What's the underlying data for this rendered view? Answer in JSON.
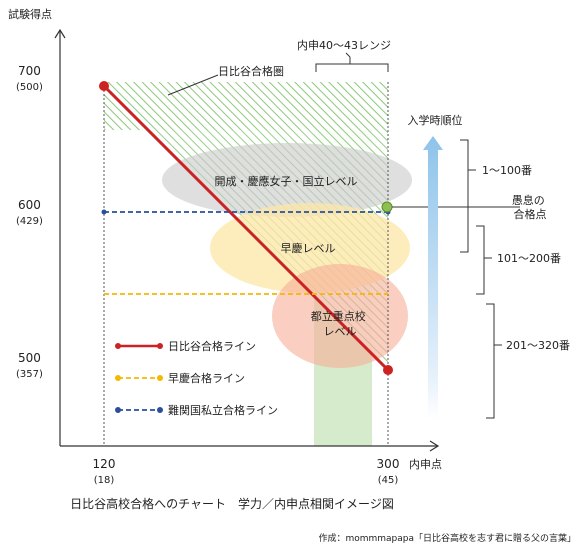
{
  "axes": {
    "y_label": "試験得点",
    "x_label": "内申点",
    "y_ticks": [
      {
        "score": "700",
        "sub": "(500)"
      },
      {
        "score": "600",
        "sub": "(429)"
      },
      {
        "score": "500",
        "sub": "(357)"
      }
    ],
    "x_ticks": [
      {
        "value": "120",
        "sub": "(18)"
      },
      {
        "value": "300",
        "sub": "(45)"
      }
    ]
  },
  "labels": {
    "hibiya_zone": "日比谷合格圏",
    "naishin_range": "内申40〜43レンジ",
    "rank_arrow": "入学時順位",
    "point": "愚息の\n合格点"
  },
  "regions": [
    {
      "name": "開成・慶應女子・国立レベル",
      "color": "#cfcfcf"
    },
    {
      "name": "早慶レベル",
      "color": "#fde7a6"
    },
    {
      "name": "都立重点校\nレベル",
      "color": "#f7b7a3"
    }
  ],
  "rank_brackets": [
    "1〜100番",
    "101〜200番",
    "201〜320番"
  ],
  "legend": [
    {
      "label": "日比谷合格ライン",
      "color": "#cc2222",
      "style": "solid"
    },
    {
      "label": "早慶合格ライン",
      "color": "#f5b800",
      "style": "dashed"
    },
    {
      "label": "難関国私立合格ライン",
      "color": "#2a4f9a",
      "style": "dashed"
    }
  ],
  "caption": "日比谷高校合格へのチャート　学力／内申点相関イメージ図",
  "credit": "作成：mommmapapa「日比谷高校を志す君に贈る父の言葉」"
}
